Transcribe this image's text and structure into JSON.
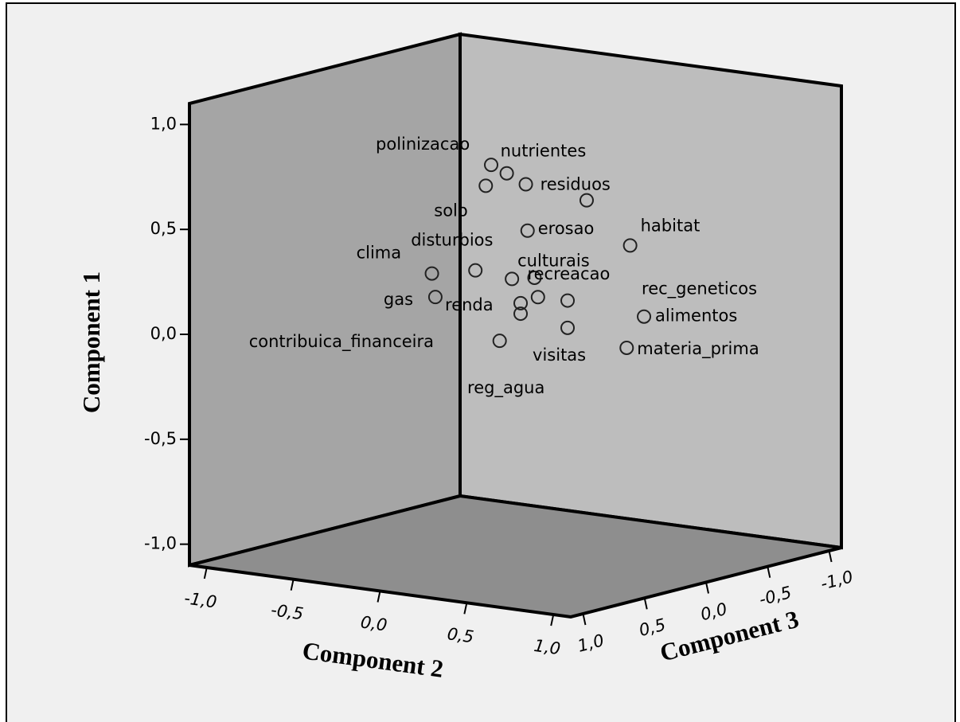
{
  "chart_data": {
    "type": "scatter3d",
    "labels": [
      "polinizacao",
      "nutrientes",
      "solo",
      "residuos",
      null,
      "erosao",
      "habitat",
      "clima",
      "disturbios",
      "culturais",
      "recreacao",
      "gas",
      "renda",
      null,
      "rec_geneticos",
      "reg_agua",
      "visitas",
      "contribuica_financeira",
      "materia_prima",
      "alimentos"
    ],
    "x": [
      -0.14,
      -0.05,
      -0.1,
      0.06,
      0.34,
      0.07,
      0.52,
      -0.34,
      -0.16,
      -0.02,
      0.11,
      -0.32,
      0.03,
      0.13,
      0.23,
      0.03,
      0.23,
      -0.02,
      0.5,
      0.6
    ],
    "y": [
      0.75,
      0.72,
      0.67,
      0.68,
      0.62,
      0.46,
      0.41,
      0.24,
      0.26,
      0.22,
      0.24,
      0.13,
      0.11,
      0.15,
      0.13,
      0.06,
      0.0,
      -0.06,
      -0.08,
      0.08
    ],
    "z": [
      0,
      0,
      0.1,
      0,
      -0.1,
      0,
      -0.2,
      0.2,
      0.1,
      0,
      0,
      0.2,
      0,
      0,
      -0.1,
      0,
      -0.1,
      0.1,
      -0.2,
      -0.2
    ],
    "xlabel": "Component 2",
    "ylabel": "Component 1",
    "zlabel": "Component 3",
    "xlim": [
      -1.1,
      1.1
    ],
    "ylim": [
      -1.1,
      1.1
    ],
    "zlim": [
      -1.1,
      1.1
    ],
    "xticks": [
      {
        "value": -1,
        "label": "-1,0"
      },
      {
        "value": -0.5,
        "label": "-0,5"
      },
      {
        "value": 0,
        "label": "0,0"
      },
      {
        "value": 0.5,
        "label": "0,5"
      },
      {
        "value": 1,
        "label": "1,0"
      }
    ],
    "yticks": [
      {
        "value": -1,
        "label": "-1,0"
      },
      {
        "value": -0.5,
        "label": "-0,5"
      },
      {
        "value": 0,
        "label": "0,0"
      },
      {
        "value": 0.5,
        "label": "0,5"
      },
      {
        "value": 1,
        "label": "1,0"
      }
    ],
    "zticks": [
      {
        "value": -1,
        "label": "-1,0"
      },
      {
        "value": -0.5,
        "label": "-0,5"
      },
      {
        "value": 0,
        "label": "0,0"
      },
      {
        "value": 0.5,
        "label": "0,5"
      },
      {
        "value": 1,
        "label": "1,0"
      }
    ]
  }
}
